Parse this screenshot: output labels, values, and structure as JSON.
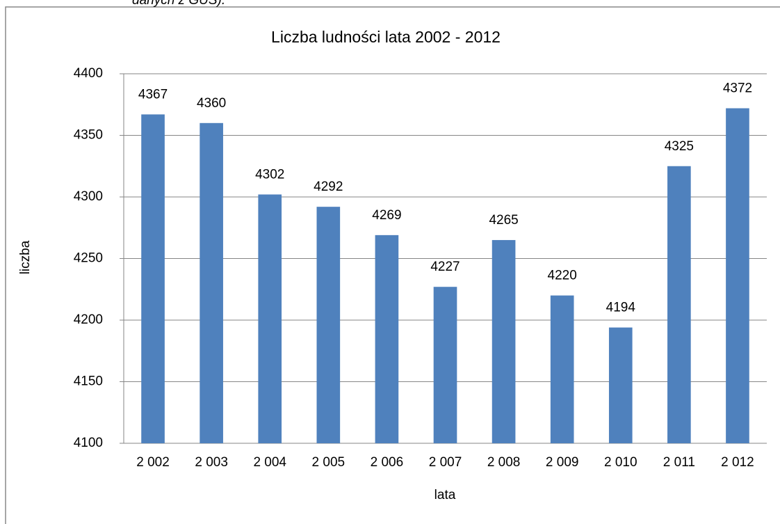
{
  "caption": "danych z GUS).",
  "chart_data": {
    "type": "bar",
    "title": "Liczba ludności lata 2002 - 2012",
    "x_label": "lata",
    "y_label": "liczba",
    "categories": [
      "2 002",
      "2 003",
      "2 004",
      "2 005",
      "2 006",
      "2 007",
      "2 008",
      "2 009",
      "2 010",
      "2 011",
      "2 012"
    ],
    "values": [
      4367,
      4360,
      4302,
      4292,
      4269,
      4227,
      4265,
      4220,
      4194,
      4325,
      4372
    ],
    "color": "#4f81bd",
    "ylim": [
      4100,
      4400
    ],
    "yticks": [
      4100,
      4150,
      4200,
      4250,
      4300,
      4350,
      4400
    ],
    "grid": true
  }
}
